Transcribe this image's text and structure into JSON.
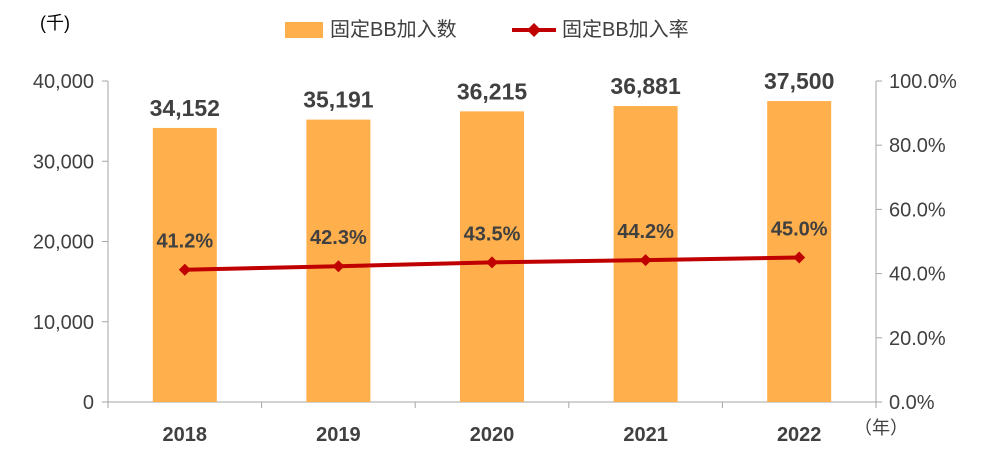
{
  "chart_data": {
    "type": "bar",
    "categories": [
      "2018",
      "2019",
      "2020",
      "2021",
      "2022"
    ],
    "series": [
      {
        "name": "固定BB加入数",
        "type": "bar",
        "axis": "left",
        "values": [
          34152,
          35191,
          36215,
          36881,
          37500
        ],
        "labels": [
          "34,152",
          "35,191",
          "36,215",
          "36,881",
          "37,500"
        ],
        "color": "#FFAF4B"
      },
      {
        "name": "固定BB加入率",
        "type": "line",
        "axis": "right",
        "values": [
          41.2,
          42.3,
          43.5,
          44.2,
          45.0
        ],
        "labels": [
          "41.2%",
          "42.3%",
          "43.5%",
          "44.2%",
          "45.0%"
        ],
        "color": "#C00000"
      }
    ],
    "y_left": {
      "unit_label": "(千)",
      "ylim": [
        0,
        40000
      ],
      "ticks": [
        0,
        10000,
        20000,
        30000,
        40000
      ],
      "tick_labels": [
        "0",
        "10,000",
        "20,000",
        "30,000",
        "40,000"
      ]
    },
    "y_right": {
      "ylim": [
        0,
        100
      ],
      "ticks": [
        0,
        20,
        40,
        60,
        80,
        100
      ],
      "tick_labels": [
        "0.0%",
        "20.0%",
        "40.0%",
        "60.0%",
        "80.0%",
        "100.0%"
      ]
    },
    "x_unit_label": "（年）",
    "legend_position": "top-center",
    "grid": false,
    "colors": {
      "axis": "#A6A6A6",
      "text": "#404040"
    }
  }
}
